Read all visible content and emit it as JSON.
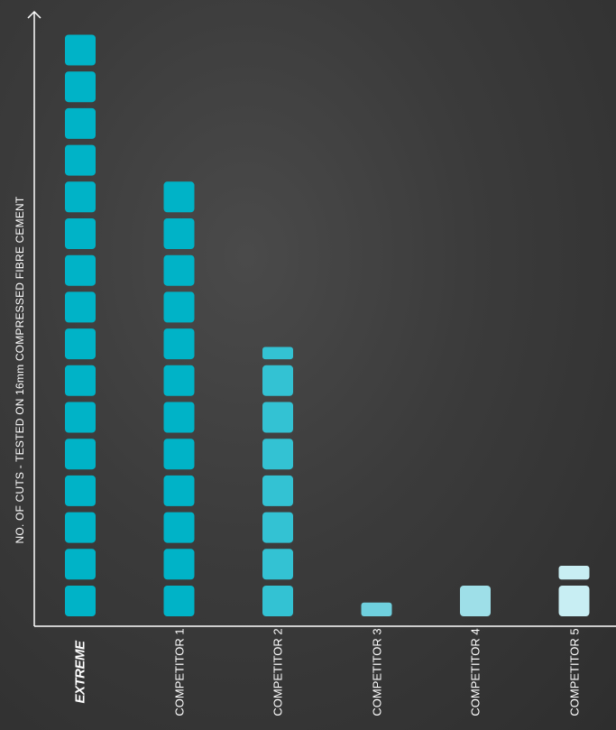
{
  "chart_data": {
    "type": "bar",
    "ylabel": "NO. OF CUTS  -  TESTED ON 16mm COMPRESSED FIBRE CEMENT",
    "categories": [
      "EXTREME",
      "COMPETITOR 1",
      "COMPETITOR 2",
      "COMPETITOR 3",
      "COMPETITOR 4",
      "COMPETITOR 5"
    ],
    "values": [
      16,
      12,
      7.4,
      0.45,
      1,
      1.45
    ],
    "colors": [
      "#00b3c7",
      "#00b3c7",
      "#33c2d3",
      "#6fd0de",
      "#9edfe8",
      "#c8eef3"
    ],
    "ylim": [
      0,
      16
    ],
    "axis_color": "#ffffff",
    "grid": false
  }
}
